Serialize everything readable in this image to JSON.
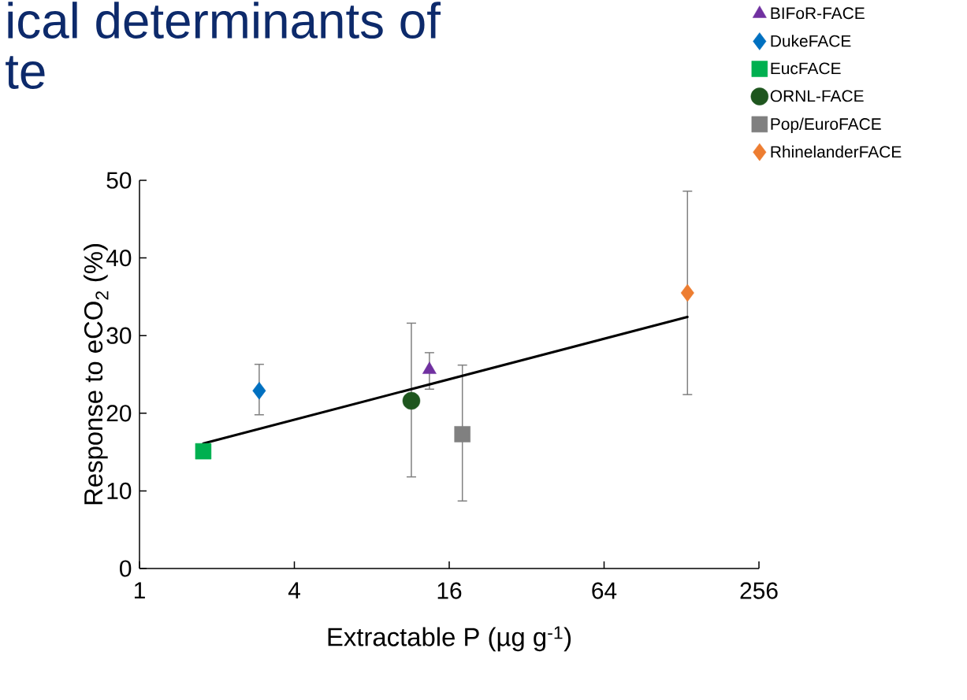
{
  "chart_data": {
    "type": "scatter",
    "xlabel": "Extractable P  (µg g$^{-1}$)",
    "ylabel": "Response to eCO$_{2}$ (%)",
    "annotations": [
      "ical determinants of",
      "te"
    ],
    "log": "x",
    "legend": "top right",
    "xlim": [
      1,
      256
    ],
    "xticks": [
      1,
      4,
      16,
      64,
      256
    ],
    "ylim": [
      0,
      50
    ],
    "yticks": [
      0,
      10,
      20,
      30,
      40,
      50
    ],
    "series": [
      {
        "name": "BIFoR-FACE",
        "color": "#7030a0",
        "marker": "triangle",
        "x": [
          13.4
        ],
        "values": [
          25.6
        ],
        "errors": [
          [
            23.1,
            27.8
          ]
        ]
      },
      {
        "name": "DukeFACE",
        "color": "#0070c0",
        "marker": "diamond",
        "x": [
          2.92
        ],
        "values": [
          22.9
        ],
        "errors": [
          [
            19.8,
            26.3
          ]
        ]
      },
      {
        "name": "EucFACE",
        "color": "#00b050",
        "marker": "square",
        "x": [
          1.77
        ],
        "values": [
          15.1
        ]
      },
      {
        "name": "ORNL-FACE",
        "color": "#1e561e",
        "marker": "circle",
        "x": [
          11.4
        ],
        "values": [
          21.6
        ],
        "errors": [
          [
            11.8,
            31.6
          ]
        ]
      },
      {
        "name": "Pop/EuroFACE",
        "color": "#808080",
        "marker": "square",
        "x": [
          18.0
        ],
        "values": [
          17.3
        ],
        "errors": [
          [
            8.7,
            26.2
          ]
        ]
      },
      {
        "name": "RhinelanderFACE",
        "color": "#ed7d31",
        "marker": "diamond",
        "x": [
          135
        ],
        "values": [
          35.5
        ],
        "errors": [
          [
            22.4,
            48.6
          ]
        ]
      },
      {
        "type": "line",
        "color": "#000000",
        "marker": "none",
        "x": [
          1.77,
          135
        ],
        "values": [
          16.1,
          32.4
        ]
      }
    ]
  }
}
